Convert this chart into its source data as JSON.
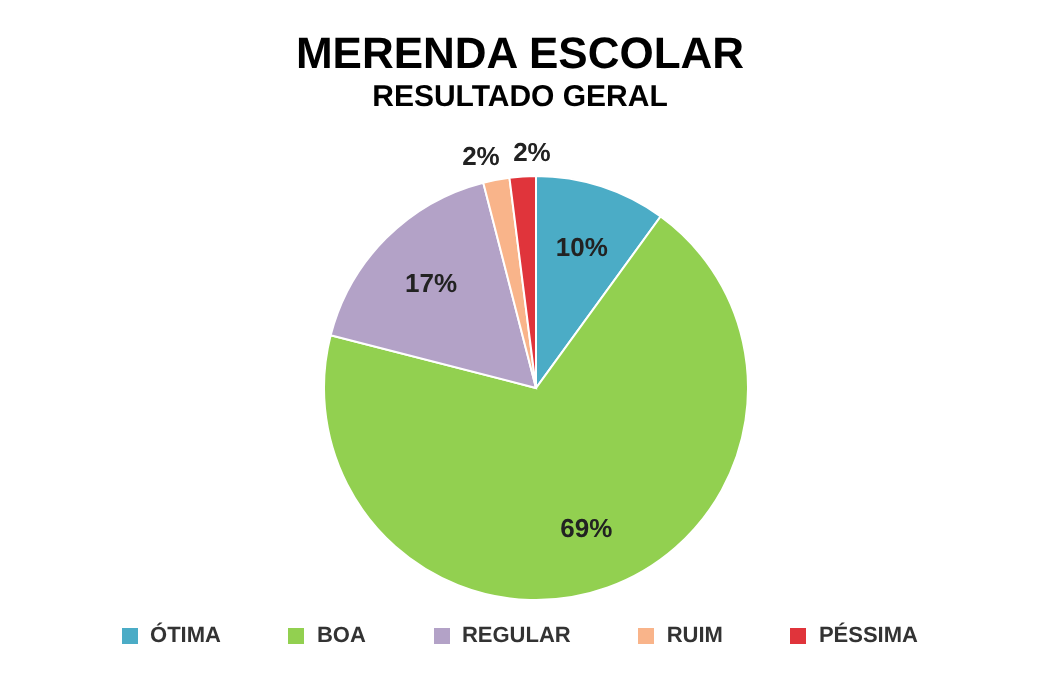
{
  "chart_data": {
    "type": "pie",
    "title": "MERENDA ESCOLAR",
    "subtitle": "RESULTADO GERAL",
    "categories": [
      "ÓTIMA",
      "BOA",
      "REGULAR",
      "RUIM",
      "PÉSSIMA"
    ],
    "values": [
      10,
      69,
      17,
      2,
      2
    ],
    "colors": [
      "#4bacc6",
      "#92d050",
      "#b3a2c7",
      "#f9b48a",
      "#e0343b"
    ],
    "value_labels": [
      "10%",
      "69%",
      "17%",
      "2%",
      "2%"
    ],
    "legend": "bottom"
  }
}
